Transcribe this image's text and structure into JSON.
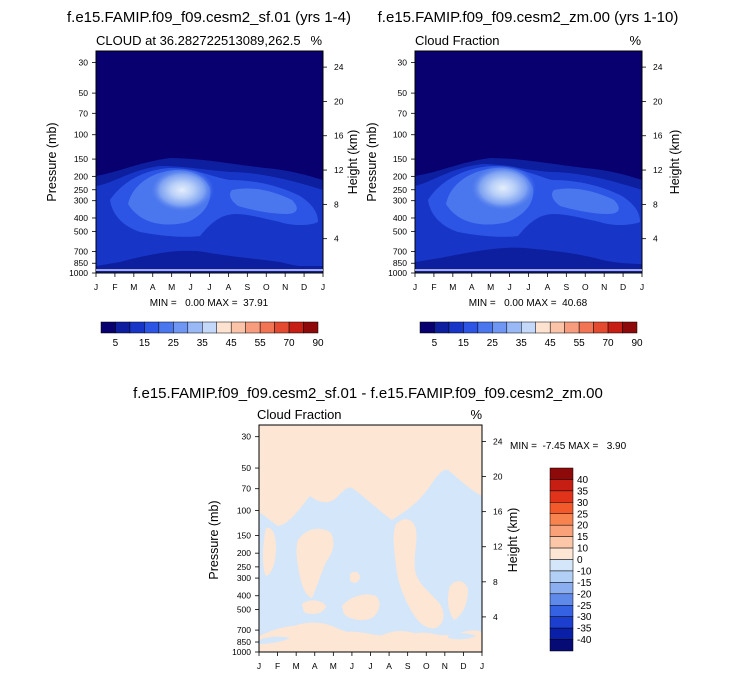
{
  "chart_data": [
    {
      "type": "heatmap",
      "title": "f.e15.FAMIP.f09_f09.cesm2_sf.01 (yrs 1-4)",
      "subtitle_left": "CLOUD at 36.282722513089,262.5",
      "subtitle_right": "%",
      "xlabel": "",
      "ylabel": "Pressure (mb)",
      "ylabel_right": "Height (km)",
      "x_ticks": [
        "J",
        "F",
        "M",
        "A",
        "M",
        "J",
        "J",
        "A",
        "S",
        "O",
        "N",
        "D",
        "J"
      ],
      "y_ticks": [
        "30",
        "50",
        "70",
        "100",
        "150",
        "200",
        "250",
        "300",
        "400",
        "500",
        "700",
        "850",
        "1000"
      ],
      "y_ticks_right": [
        "24",
        "20",
        "16",
        "12",
        "8",
        "4"
      ],
      "stats": "MIN =   0.00 MAX =  37.91",
      "colorbar_labels": [
        "5",
        "15",
        "25",
        "35",
        "45",
        "55",
        "70",
        "90"
      ]
    },
    {
      "type": "heatmap",
      "title": "f.e15.FAMIP.f09_f09.cesm2_zm.00 (yrs 1-10)",
      "subtitle_left": "Cloud Fraction",
      "subtitle_right": "%",
      "xlabel": "",
      "ylabel": "Pressure (mb)",
      "ylabel_right": "Height (km)",
      "x_ticks": [
        "J",
        "F",
        "M",
        "A",
        "M",
        "J",
        "J",
        "A",
        "S",
        "O",
        "N",
        "D",
        "J"
      ],
      "y_ticks": [
        "30",
        "50",
        "70",
        "100",
        "150",
        "200",
        "250",
        "300",
        "400",
        "500",
        "700",
        "850",
        "1000"
      ],
      "y_ticks_right": [
        "24",
        "20",
        "16",
        "12",
        "8",
        "4"
      ],
      "stats": "MIN =   0.00 MAX =  40.68",
      "colorbar_labels": [
        "5",
        "15",
        "25",
        "35",
        "45",
        "55",
        "70",
        "90"
      ]
    },
    {
      "type": "heatmap",
      "title": "f.e15.FAMIP.f09_f09.cesm2_sf.01 - f.e15.FAMIP.f09_f09.cesm2_zm.00",
      "subtitle_left": "Cloud Fraction",
      "subtitle_right": "%",
      "xlabel": "",
      "ylabel": "Pressure (mb)",
      "ylabel_right": "Height (km)",
      "x_ticks": [
        "J",
        "F",
        "M",
        "A",
        "M",
        "J",
        "J",
        "A",
        "S",
        "O",
        "N",
        "D",
        "J"
      ],
      "y_ticks": [
        "30",
        "50",
        "70",
        "100",
        "150",
        "200",
        "250",
        "300",
        "400",
        "500",
        "700",
        "850",
        "1000"
      ],
      "y_ticks_right": [
        "24",
        "20",
        "16",
        "12",
        "8",
        "4"
      ],
      "stats": "MIN =  -7.45 MAX =   3.90",
      "colorbar_labels": [
        "40",
        "35",
        "30",
        "25",
        "20",
        "15",
        "10",
        "0",
        "-10",
        "-15",
        "-20",
        "-25",
        "-30",
        "-35",
        "-40"
      ]
    }
  ],
  "colors": {
    "abs_scale": [
      "#08006e",
      "#0d1f9e",
      "#1736c8",
      "#2c55e6",
      "#4a76ee",
      "#6e96f2",
      "#98b8f6",
      "#c4d8fa",
      "#fde3cf",
      "#fbc3a8",
      "#f79d7d",
      "#f17453",
      "#e44a2f",
      "#c71e14",
      "#8e0a0a"
    ],
    "diff_scale": [
      "#8e0a0a",
      "#c71e14",
      "#e0331a",
      "#f25a2b",
      "#f7834f",
      "#f9a27a",
      "#fbc7a8",
      "#fde6d4",
      "#d4e6fa",
      "#b2cff6",
      "#8aaef0",
      "#5f8aea",
      "#3562e2",
      "#1c3fcf",
      "#0a1fa8",
      "#060a74"
    ],
    "diff_positive": "#fde6d4",
    "diff_negative": "#d4e6fa"
  }
}
